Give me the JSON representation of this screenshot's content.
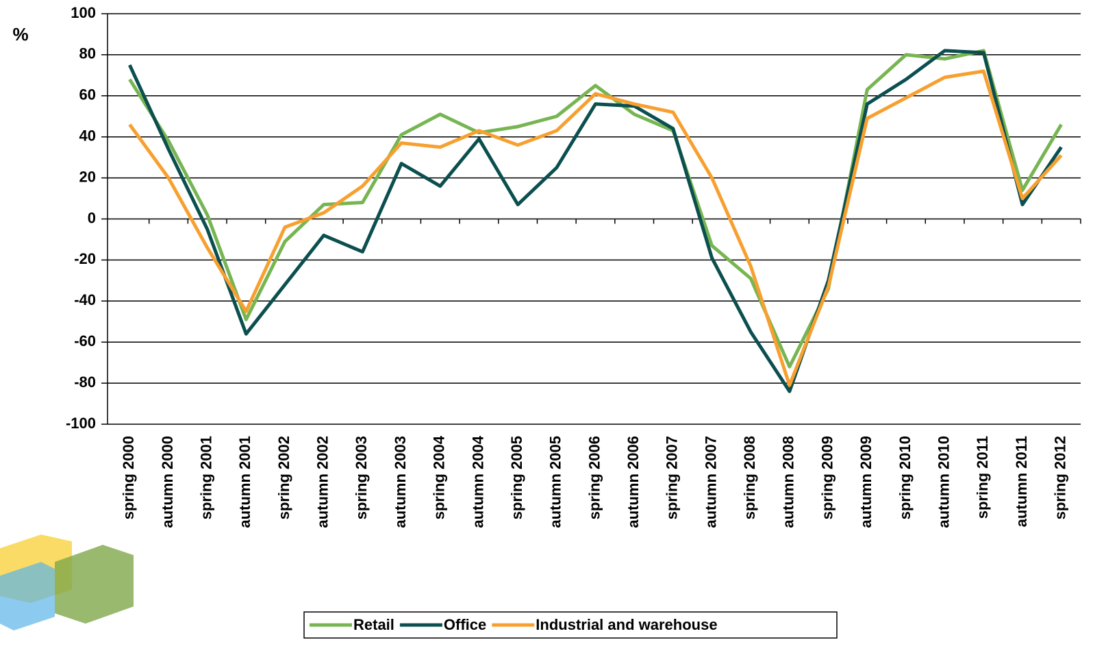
{
  "chart_data": {
    "type": "line",
    "y_label": "%",
    "categories": [
      "spring 2000",
      "autumn 2000",
      "spring 2001",
      "autumn 2001",
      "spring 2002",
      "autumn 2002",
      "spring 2003",
      "autumn 2003",
      "spring 2004",
      "autumn 2004",
      "spring 2005",
      "autumn 2005",
      "spring 2006",
      "autumn 2006",
      "spring 2007",
      "autumn 2007",
      "spring 2008",
      "autumn 2008",
      "spring 2009",
      "autumn 2009",
      "spring 2010",
      "autumn 2010",
      "spring 2011",
      "autumn 2011",
      "spring 2012"
    ],
    "series": [
      {
        "name": "Retail",
        "color": "#77b552",
        "values": [
          68,
          38,
          2,
          -49,
          -11,
          7,
          8,
          41,
          51,
          42,
          45,
          50,
          65,
          51,
          43,
          -13,
          -29,
          -72,
          -34,
          63,
          80,
          78,
          82,
          14,
          46
        ]
      },
      {
        "name": "Office",
        "color": "#0c4f4f",
        "values": [
          75,
          34,
          -5,
          -56,
          -32,
          -8,
          -16,
          27,
          16,
          39,
          7,
          25,
          56,
          55,
          44,
          -19,
          -55,
          -84,
          -30,
          56,
          68,
          82,
          81,
          7,
          35
        ]
      },
      {
        "name": "Industrial and warehouse",
        "color": "#f7a030",
        "values": [
          46,
          20,
          -14,
          -45,
          -4,
          3,
          16,
          37,
          35,
          43,
          36,
          43,
          61,
          56,
          52,
          20,
          -23,
          -81,
          -33,
          49,
          59,
          69,
          72,
          10,
          31
        ]
      }
    ],
    "ylim": [
      -100,
      100
    ],
    "yticks": [
      -100,
      -80,
      -60,
      -40,
      -20,
      0,
      20,
      40,
      60,
      80,
      100
    ],
    "grid": true,
    "legend": "bottom"
  }
}
